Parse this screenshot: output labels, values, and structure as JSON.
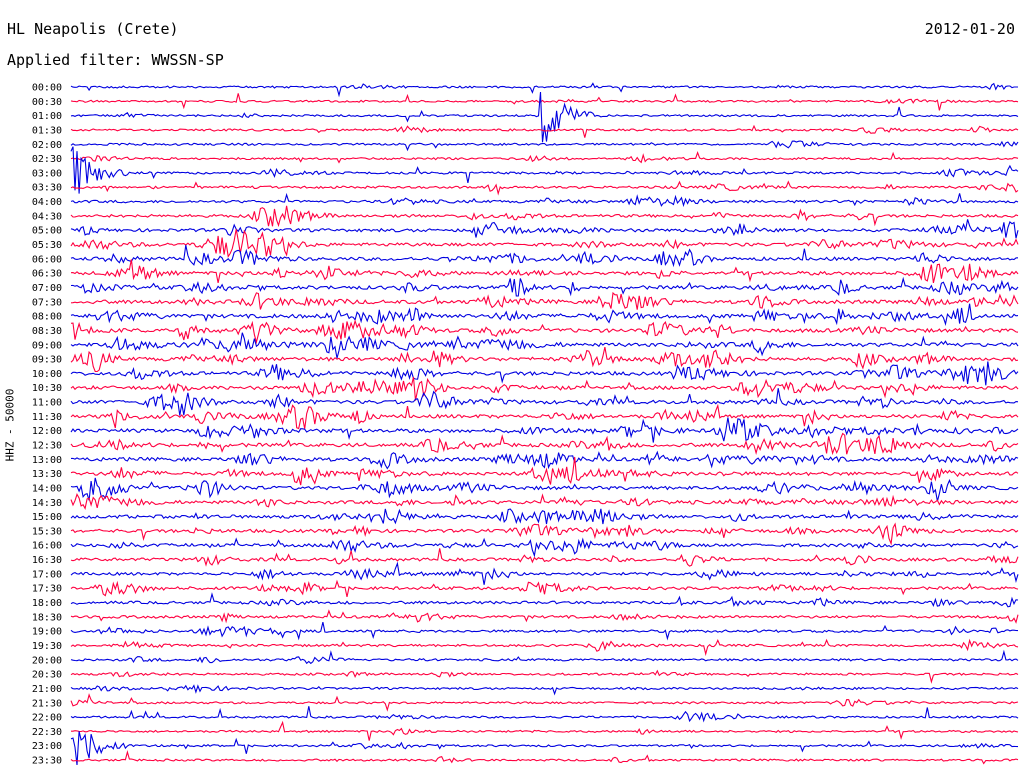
{
  "header": {
    "station": "HL Neapolis (Crete)",
    "date": "2012-01-20",
    "filter": "Applied filter: WWSSN-SP",
    "channel": "HHZ - 50000"
  },
  "colors": {
    "odd_trace": "#0000e0",
    "even_trace": "#ff0040",
    "background": "#ffffff"
  },
  "chart_data": {
    "type": "helicorder",
    "title": "HL Neapolis (Crete)",
    "subtitle": "Applied filter: WWSSN-SP",
    "date": "2012-01-20",
    "ylabel": "HHZ - 50000",
    "y_tick_labels": [
      "00:00",
      "00:30",
      "01:00",
      "01:30",
      "02:00",
      "02:30",
      "03:00",
      "03:30",
      "04:00",
      "04:30",
      "05:00",
      "05:30",
      "06:00",
      "06:30",
      "07:00",
      "07:30",
      "08:00",
      "08:30",
      "09:00",
      "09:30",
      "10:00",
      "10:30",
      "11:00",
      "11:30",
      "12:00",
      "12:30",
      "13:00",
      "13:30",
      "14:00",
      "14:30",
      "15:00",
      "15:30",
      "16:00",
      "16:30",
      "17:00",
      "17:30",
      "18:00",
      "18:30",
      "19:00",
      "19:30",
      "20:00",
      "20:30",
      "21:00",
      "21:30",
      "22:00",
      "22:30",
      "23:00",
      "23:30"
    ],
    "trace_minutes": 30,
    "activity_envelope": [
      0.15,
      0.15,
      0.15,
      0.2,
      0.18,
      0.18,
      0.25,
      0.3,
      0.4,
      0.5,
      0.6,
      0.65,
      0.7,
      0.75,
      0.8,
      0.8,
      0.85,
      0.85,
      0.85,
      0.85,
      0.85,
      0.8,
      0.8,
      0.8,
      0.8,
      0.8,
      0.8,
      0.75,
      0.75,
      0.7,
      0.7,
      0.65,
      0.6,
      0.55,
      0.5,
      0.5,
      0.45,
      0.4,
      0.35,
      0.3,
      0.25,
      0.22,
      0.2,
      0.18,
      0.18,
      0.15,
      0.18,
      0.15
    ],
    "events": [
      {
        "time": "01:15",
        "type": "large earthquake"
      },
      {
        "time": "03:00",
        "type": "regional event"
      },
      {
        "time": "23:00",
        "type": "local event"
      }
    ],
    "grid": false
  }
}
